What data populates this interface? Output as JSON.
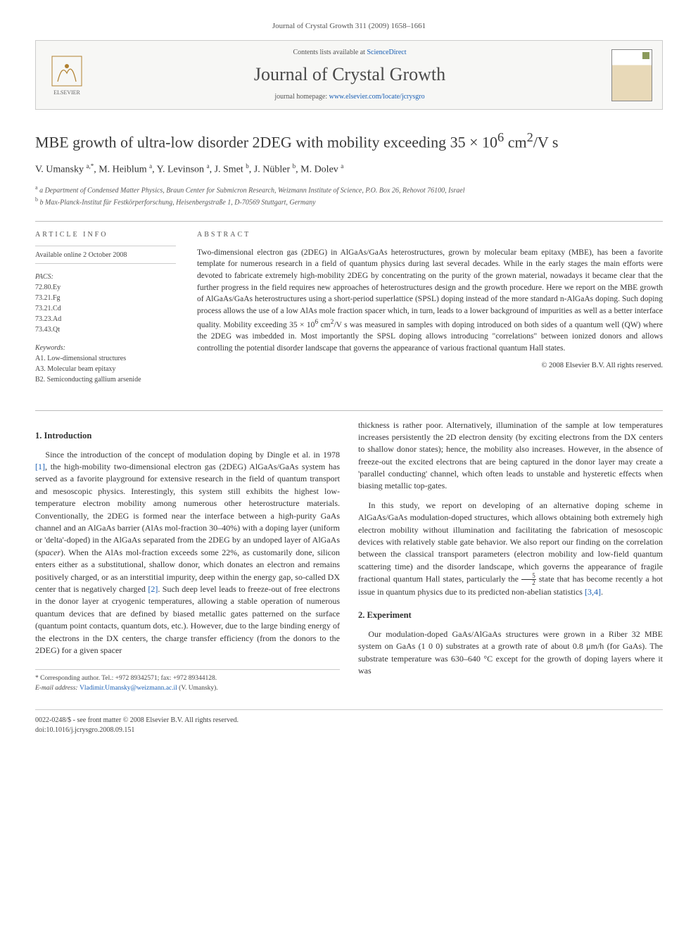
{
  "header": {
    "citation": "Journal of Crystal Growth 311 (2009) 1658–1661"
  },
  "banner": {
    "publisher": "ELSEVIER",
    "contents_prefix": "Contents lists available at ",
    "contents_link": "ScienceDirect",
    "journal_name": "Journal of Crystal Growth",
    "homepage_prefix": "journal homepage: ",
    "homepage_link": "www.elsevier.com/locate/jcrysgro",
    "cover_label": "JOURNAL OF CRYSTAL GROWTH"
  },
  "article": {
    "title_html": "MBE growth of ultra-low disorder 2DEG with mobility exceeding 35 × 10<sup>6</sup> cm<sup>2</sup>/V s",
    "authors_html": "V. Umansky <sup>a,*</sup>, M. Heiblum <sup>a</sup>, Y. Levinson <sup>a</sup>, J. Smet <sup>b</sup>, J. Nübler <sup>b</sup>, M. Dolev <sup>a</sup>",
    "affiliations": [
      "a Department of Condensed Matter Physics, Braun Center for Submicron Research, Weizmann Institute of Science, P.O. Box 26, Rehovot 76100, Israel",
      "b Max-Planck-Institut für Festkörperforschung, Heisenbergstraße 1, D-70569 Stuttgart, Germany"
    ]
  },
  "info": {
    "heading": "ARTICLE INFO",
    "available": "Available online 2 October 2008",
    "pacs_label": "PACS:",
    "pacs": [
      "72.80.Ey",
      "73.21.Fg",
      "73.21.Cd",
      "73.23.Ad",
      "73.43.Qt"
    ],
    "keywords_label": "Keywords:",
    "keywords": [
      "A1. Low-dimensional structures",
      "A3. Molecular beam epitaxy",
      "B2. Semiconducting gallium arsenide"
    ]
  },
  "abstract": {
    "heading": "ABSTRACT",
    "text_html": "Two-dimensional electron gas (2DEG) in AlGaAs/GaAs heterostructures, grown by molecular beam epitaxy (MBE), has been a favorite template for numerous research in a field of quantum physics during last several decades. While in the early stages the main efforts were devoted to fabricate extremely high-mobility 2DEG by concentrating on the purity of the grown material, nowadays it became clear that the further progress in the field requires new approaches of heterostructures design and the growth procedure. Here we report on the MBE growth of AlGaAs/GaAs heterostructures using a short-period superlattice (SPSL) doping instead of the more standard n-AlGaAs doping. Such doping process allows the use of a low AlAs mole fraction spacer which, in turn, leads to a lower background of impurities as well as a better interface quality. Mobility exceeding 35 × 10<sup>6</sup> cm<sup>2</sup>/V s was measured in samples with doping introduced on both sides of a quantum well (QW) where the 2DEG was imbedded in. Most importantly the SPSL doping allows introducing \"correlations\" between ionized donors and allows controlling the potential disorder landscape that governs the appearance of various fractional quantum Hall states.",
    "copyright": "© 2008 Elsevier B.V. All rights reserved."
  },
  "sections": {
    "intro_heading": "1. Introduction",
    "intro_p1_html": "Since the introduction of the concept of modulation doping by Dingle et al. in 1978 <span class=\"ref\">[1]</span>, the high-mobility two-dimensional electron gas (2DEG) AlGaAs/GaAs system has served as a favorite playground for extensive research in the field of quantum transport and mesoscopic physics. Interestingly, this system still exhibits the highest low-temperature electron mobility among numerous other heterostructure materials. Conventionally, the 2DEG is formed near the interface between a high-purity GaAs channel and an AlGaAs barrier (AlAs mol-fraction 30–40%) with a doping layer (uniform or 'delta'-doped) in the AlGaAs separated from the 2DEG by an undoped layer of AlGaAs (<i>spacer</i>). When the AlAs mol-fraction exceeds some 22%, as customarily done, silicon enters either as a substitutional, shallow donor, which donates an electron and remains positively charged, or as an interstitial impurity, deep within the energy gap, so-called DX center that is negatively charged <span class=\"ref\">[2]</span>. Such deep level leads to freeze-out of free electrons in the donor layer at cryogenic temperatures, allowing a stable operation of numerous quantum devices that are defined by biased metallic gates patterned on the surface (quantum point contacts, quantum dots, etc.). However, due to the large binding energy of the electrons in the DX centers, the charge transfer efficiency (from the donors to the 2DEG) for a given spacer",
    "intro_p2_html": "thickness is rather poor. Alternatively, illumination of the sample at low temperatures increases persistently the 2D electron density (by exciting electrons from the DX centers to shallow donor states); hence, the mobility also increases. However, in the absence of freeze-out the excited electrons that are being captured in the donor layer may create a 'parallel conducting' channel, which often leads to unstable and hysteretic effects when biasing metallic top-gates.",
    "intro_p3_html": "In this study, we report on developing of an alternative doping scheme in AlGaAs/GaAs modulation-doped structures, which allows obtaining both extremely high electron mobility without illumination and facilitating the fabrication of mesoscopic devices with relatively stable gate behavior. We also report our finding on the correlation between the classical transport parameters (electron mobility and low-field quantum scattering time) and the disorder landscape, which governs the appearance of fragile fractional quantum Hall states, particularly the <span class=\"frac\"><span class=\"num\">5</span><span class=\"den\">2</span></span> state that has become recently a hot issue in quantum physics due to its predicted non-abelian statistics <span class=\"ref\">[3,4]</span>.",
    "exp_heading": "2. Experiment",
    "exp_p1_html": "Our modulation-doped GaAs/AlGaAs structures were grown in a Riber 32 MBE system on GaAs (1 0 0) substrates at a growth rate of about 0.8 μm/h (for GaAs). The substrate temperature was 630–640 °C except for the growth of doping layers where it was"
  },
  "corr": {
    "label": "* Corresponding author. Tel.: +972 89342571; fax: +972 89344128.",
    "email_label": "E-mail address: ",
    "email": "Vladimir.Umansky@weizmann.ac.il",
    "email_suffix": " (V. Umansky)."
  },
  "footer": {
    "issn_line": "0022-0248/$ - see front matter © 2008 Elsevier B.V. All rights reserved.",
    "doi_line": "doi:10.1016/j.jcrysgro.2008.09.151"
  },
  "colors": {
    "link": "#1a5fb4",
    "text": "#333333",
    "muted": "#555555",
    "rule": "#bbbbbb",
    "banner_bg": "#f7f7f5"
  },
  "typography": {
    "body_fontsize": 13,
    "title_fontsize": 22,
    "journal_fontsize": 26,
    "abstract_fontsize": 11.5,
    "info_fontsize": 10
  }
}
